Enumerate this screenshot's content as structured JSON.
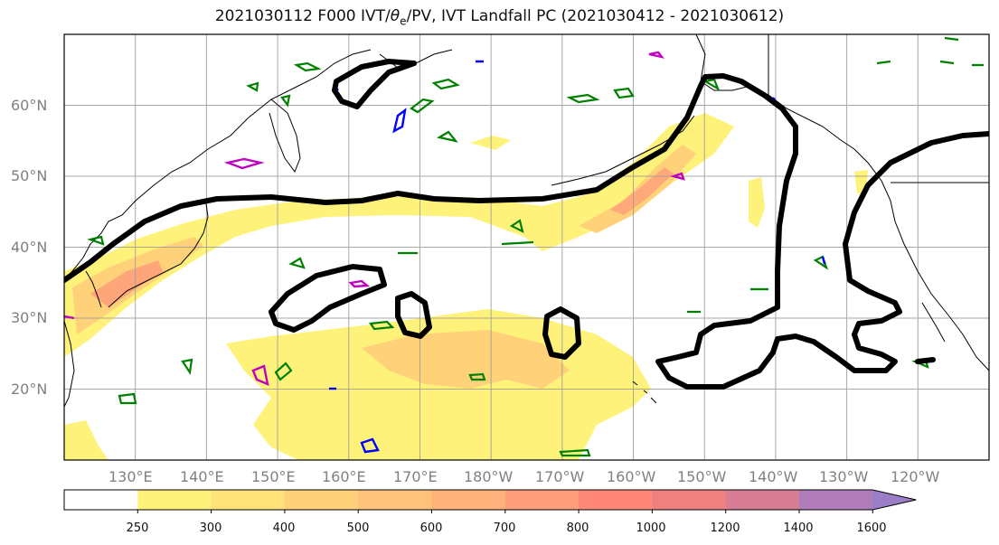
{
  "title": {
    "prefix": "2021030112 F000 IVT/",
    "theta_symbol": "θ",
    "theta_sub": "e",
    "suffix": "/PV, IVT Landfall PC (2021030412 - 2021030612)"
  },
  "map": {
    "projection": "PlateCarree",
    "lon_range": [
      120,
      250
    ],
    "lat_range": [
      10,
      70
    ],
    "lat_labels": [
      "20°N",
      "30°N",
      "40°N",
      "50°N",
      "60°N"
    ],
    "lon_labels": [
      "130°E",
      "140°E",
      "150°E",
      "160°E",
      "170°E",
      "180°W",
      "170°W",
      "160°W",
      "150°W",
      "140°W",
      "130°W",
      "120°W"
    ],
    "gridlines": true,
    "colors": {
      "coastline": "#000000",
      "grid": "#9a9a9a",
      "landfall_contour": "#000000",
      "theta_e_contour": "#008000",
      "pv_contour_blue": "#0000ff",
      "pv_contour_magenta": "#c000c0"
    }
  },
  "colorbar": {
    "levels": [
      "250",
      "300",
      "400",
      "500",
      "600",
      "700",
      "800",
      "1000",
      "1200",
      "1400",
      "1600"
    ],
    "colors": [
      "#ffffff",
      "#fff27a",
      "#ffe37a",
      "#ffd27a",
      "#ffc27a",
      "#ffb27a",
      "#ff9e7a",
      "#ff887a",
      "#f0807e",
      "#d87e94",
      "#b07cba",
      "#9b7ec8"
    ],
    "extend": "max"
  }
}
